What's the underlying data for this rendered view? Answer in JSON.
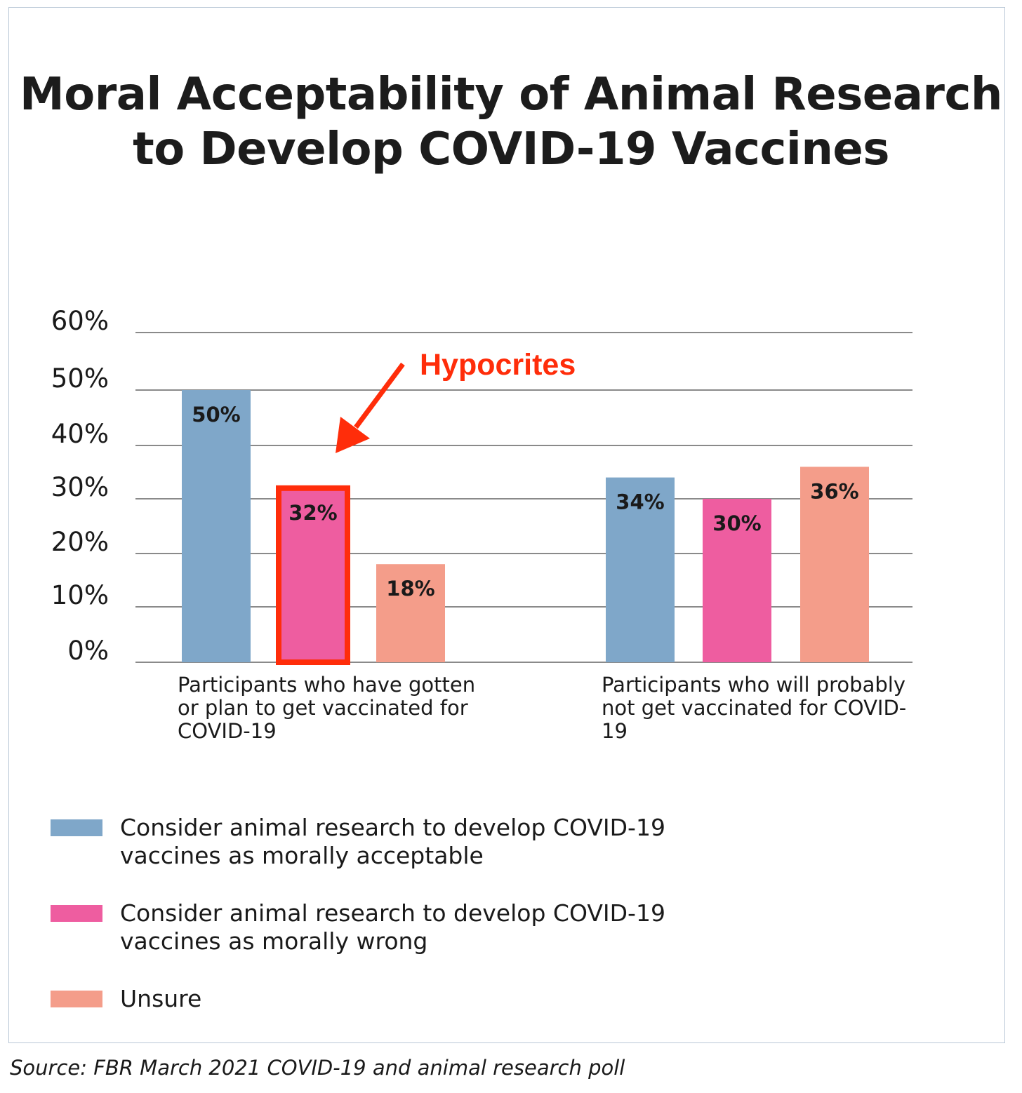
{
  "chart_data": {
    "type": "bar",
    "title": "Moral Acceptability of Animal Research to Develop COVID-19 Vaccines",
    "categories": [
      "Participants who have gotten or plan to get vaccinated for COVID-19",
      "Participants who will probably not get vaccinated for COVID-19"
    ],
    "series": [
      {
        "name": "Consider animal research to develop COVID-19 vaccines as morally acceptable",
        "values": [
          50,
          34
        ],
        "labels": [
          "50%",
          "34%"
        ],
        "color": "#7fa7c9"
      },
      {
        "name": "Consider animal research to develop COVID-19 vaccines as morally wrong",
        "values": [
          32,
          30
        ],
        "labels": [
          "32%",
          "30%"
        ],
        "color": "#ee5da0"
      },
      {
        "name": "Unsure",
        "values": [
          18,
          36
        ],
        "labels": [
          "18%",
          "36%"
        ],
        "color": "#f49d8a"
      }
    ],
    "ylim": [
      0,
      60
    ],
    "yticks": [
      "0%",
      "10%",
      "20%",
      "30%",
      "40%",
      "50%",
      "60%"
    ],
    "grid": true,
    "legend_position": "bottom-left",
    "annotation": {
      "text": "Hypocrites",
      "color": "#ff2d0a",
      "target_category": 0,
      "target_series": 1
    }
  },
  "source": "Source: FBR March 2021 COVID-19 and animal research poll"
}
